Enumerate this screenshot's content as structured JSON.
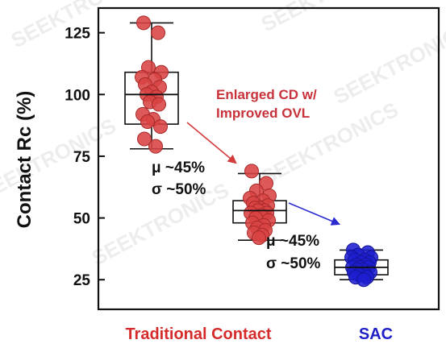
{
  "chart_data": {
    "type": "box-scatter",
    "title": "",
    "xlabel": "",
    "ylabel": "Contact Rc (%)",
    "ylim": [
      13,
      135
    ],
    "yticks": [
      25,
      50,
      75,
      100,
      125
    ],
    "grid": false,
    "categories": [
      "Traditional Contact",
      "SAC"
    ],
    "category_colors": [
      "#d62b2b",
      "#1f1fc8"
    ],
    "series": [
      {
        "group": "Traditional Contact",
        "color": "#d94343",
        "box": {
          "min": 78,
          "q1": 88,
          "median": 100,
          "q3": 109,
          "max": 129
        },
        "points": [
          129,
          125,
          111,
          109,
          107,
          106,
          104,
          103,
          101,
          100,
          99,
          97,
          96,
          92,
          90,
          89,
          87,
          82,
          79
        ]
      },
      {
        "group": "",
        "color": "#d94343",
        "box": {
          "min": 41,
          "q1": 48,
          "median": 53,
          "q3": 57,
          "max": 68
        },
        "points": [
          69,
          64,
          61,
          59,
          58,
          57,
          56,
          55,
          54,
          54,
          53,
          53,
          52,
          52,
          51,
          50,
          49,
          48,
          47,
          46,
          45,
          44,
          43,
          42
        ]
      },
      {
        "group": "SAC",
        "color": "#1f1fd0",
        "box": {
          "min": 25,
          "q1": 27,
          "median": 30,
          "q3": 33,
          "max": 37
        },
        "points": [
          37,
          36,
          35,
          34,
          34,
          33,
          33,
          32,
          32,
          31,
          31,
          30,
          30,
          30,
          29,
          29,
          28,
          28,
          27,
          27,
          26,
          26,
          25
        ]
      }
    ],
    "annotations": {
      "transition_label": [
        "Enlarged CD w/",
        "Improved OVL"
      ],
      "transition_color": "#c8323a",
      "stats_1": [
        "μ ~45%",
        "σ ~50%"
      ],
      "stats_2": [
        "μ ~45%",
        "σ ~50%"
      ]
    },
    "watermark": "SEEKTRONICS"
  }
}
